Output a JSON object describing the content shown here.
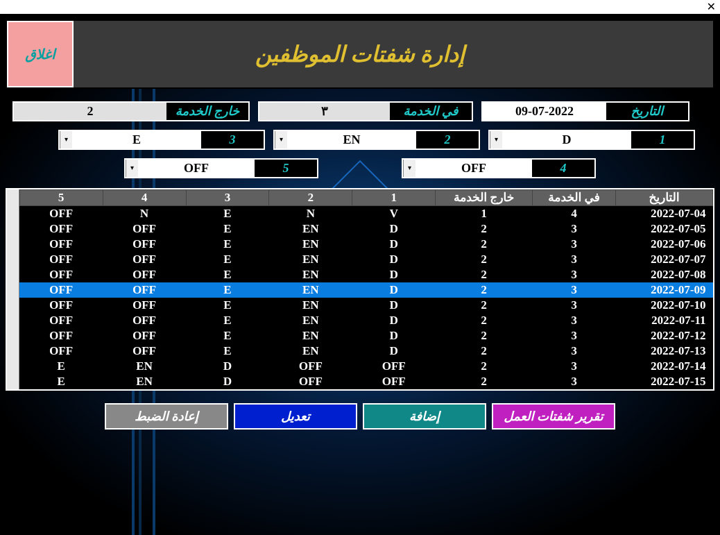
{
  "window": {
    "close_icon": "✕"
  },
  "header": {
    "title": "إدارة شفتات الموظفين",
    "close_button": "اغلاق"
  },
  "summary": {
    "date_label": "التاريخ",
    "date_value": "09-07-2022",
    "on_duty_label": "في الخدمة",
    "on_duty_value": "٣",
    "off_duty_label": "خارج الخدمة",
    "off_duty_value": "2"
  },
  "shifts": {
    "s1": {
      "num": "1",
      "val": "D"
    },
    "s2": {
      "num": "2",
      "val": "EN"
    },
    "s3": {
      "num": "3",
      "val": "E"
    },
    "s4": {
      "num": "4",
      "val": "OFF"
    },
    "s5": {
      "num": "5",
      "val": "OFF"
    }
  },
  "table": {
    "headers": {
      "c5": "5",
      "c4": "4",
      "c3": "3",
      "c2": "2",
      "c1": "1",
      "off": "خارج الخدمة",
      "on": "في الخدمة",
      "date": "التاريخ"
    },
    "rows": [
      {
        "c5": "OFF",
        "c4": "N",
        "c3": "E",
        "c2": "N",
        "c1": "V",
        "off": "1",
        "on": "4",
        "date": "2022-07-04",
        "selected": false
      },
      {
        "c5": "OFF",
        "c4": "OFF",
        "c3": "E",
        "c2": "EN",
        "c1": "D",
        "off": "2",
        "on": "3",
        "date": "2022-07-05",
        "selected": false
      },
      {
        "c5": "OFF",
        "c4": "OFF",
        "c3": "E",
        "c2": "EN",
        "c1": "D",
        "off": "2",
        "on": "3",
        "date": "2022-07-06",
        "selected": false
      },
      {
        "c5": "OFF",
        "c4": "OFF",
        "c3": "E",
        "c2": "EN",
        "c1": "D",
        "off": "2",
        "on": "3",
        "date": "2022-07-07",
        "selected": false
      },
      {
        "c5": "OFF",
        "c4": "OFF",
        "c3": "E",
        "c2": "EN",
        "c1": "D",
        "off": "2",
        "on": "3",
        "date": "2022-07-08",
        "selected": false
      },
      {
        "c5": "OFF",
        "c4": "OFF",
        "c3": "E",
        "c2": "EN",
        "c1": "D",
        "off": "2",
        "on": "3",
        "date": "2022-07-09",
        "selected": true
      },
      {
        "c5": "OFF",
        "c4": "OFF",
        "c3": "E",
        "c2": "EN",
        "c1": "D",
        "off": "2",
        "on": "3",
        "date": "2022-07-10",
        "selected": false
      },
      {
        "c5": "OFF",
        "c4": "OFF",
        "c3": "E",
        "c2": "EN",
        "c1": "D",
        "off": "2",
        "on": "3",
        "date": "2022-07-11",
        "selected": false
      },
      {
        "c5": "OFF",
        "c4": "OFF",
        "c3": "E",
        "c2": "EN",
        "c1": "D",
        "off": "2",
        "on": "3",
        "date": "2022-07-12",
        "selected": false
      },
      {
        "c5": "OFF",
        "c4": "OFF",
        "c3": "E",
        "c2": "EN",
        "c1": "D",
        "off": "2",
        "on": "3",
        "date": "2022-07-13",
        "selected": false
      },
      {
        "c5": "E",
        "c4": "EN",
        "c3": "D",
        "c2": "OFF",
        "c1": "OFF",
        "off": "2",
        "on": "3",
        "date": "2022-07-14",
        "selected": false
      },
      {
        "c5": "E",
        "c4": "EN",
        "c3": "D",
        "c2": "OFF",
        "c1": "OFF",
        "off": "2",
        "on": "3",
        "date": "2022-07-15",
        "selected": false
      }
    ]
  },
  "footer": {
    "reset": "إعادة الضبط",
    "edit": "تعديل",
    "add": "إضافة",
    "report": "تقرير شفتات العمل"
  },
  "colors": {
    "accent_cyan": "#20c8c8",
    "title_gold": "#e0c030",
    "row_selected": "#0a7de0",
    "close_bg": "#f4a0a0",
    "btn_reset": "#888888",
    "btn_edit": "#0020d0",
    "btn_add": "#108888",
    "btn_report": "#c020c0"
  }
}
